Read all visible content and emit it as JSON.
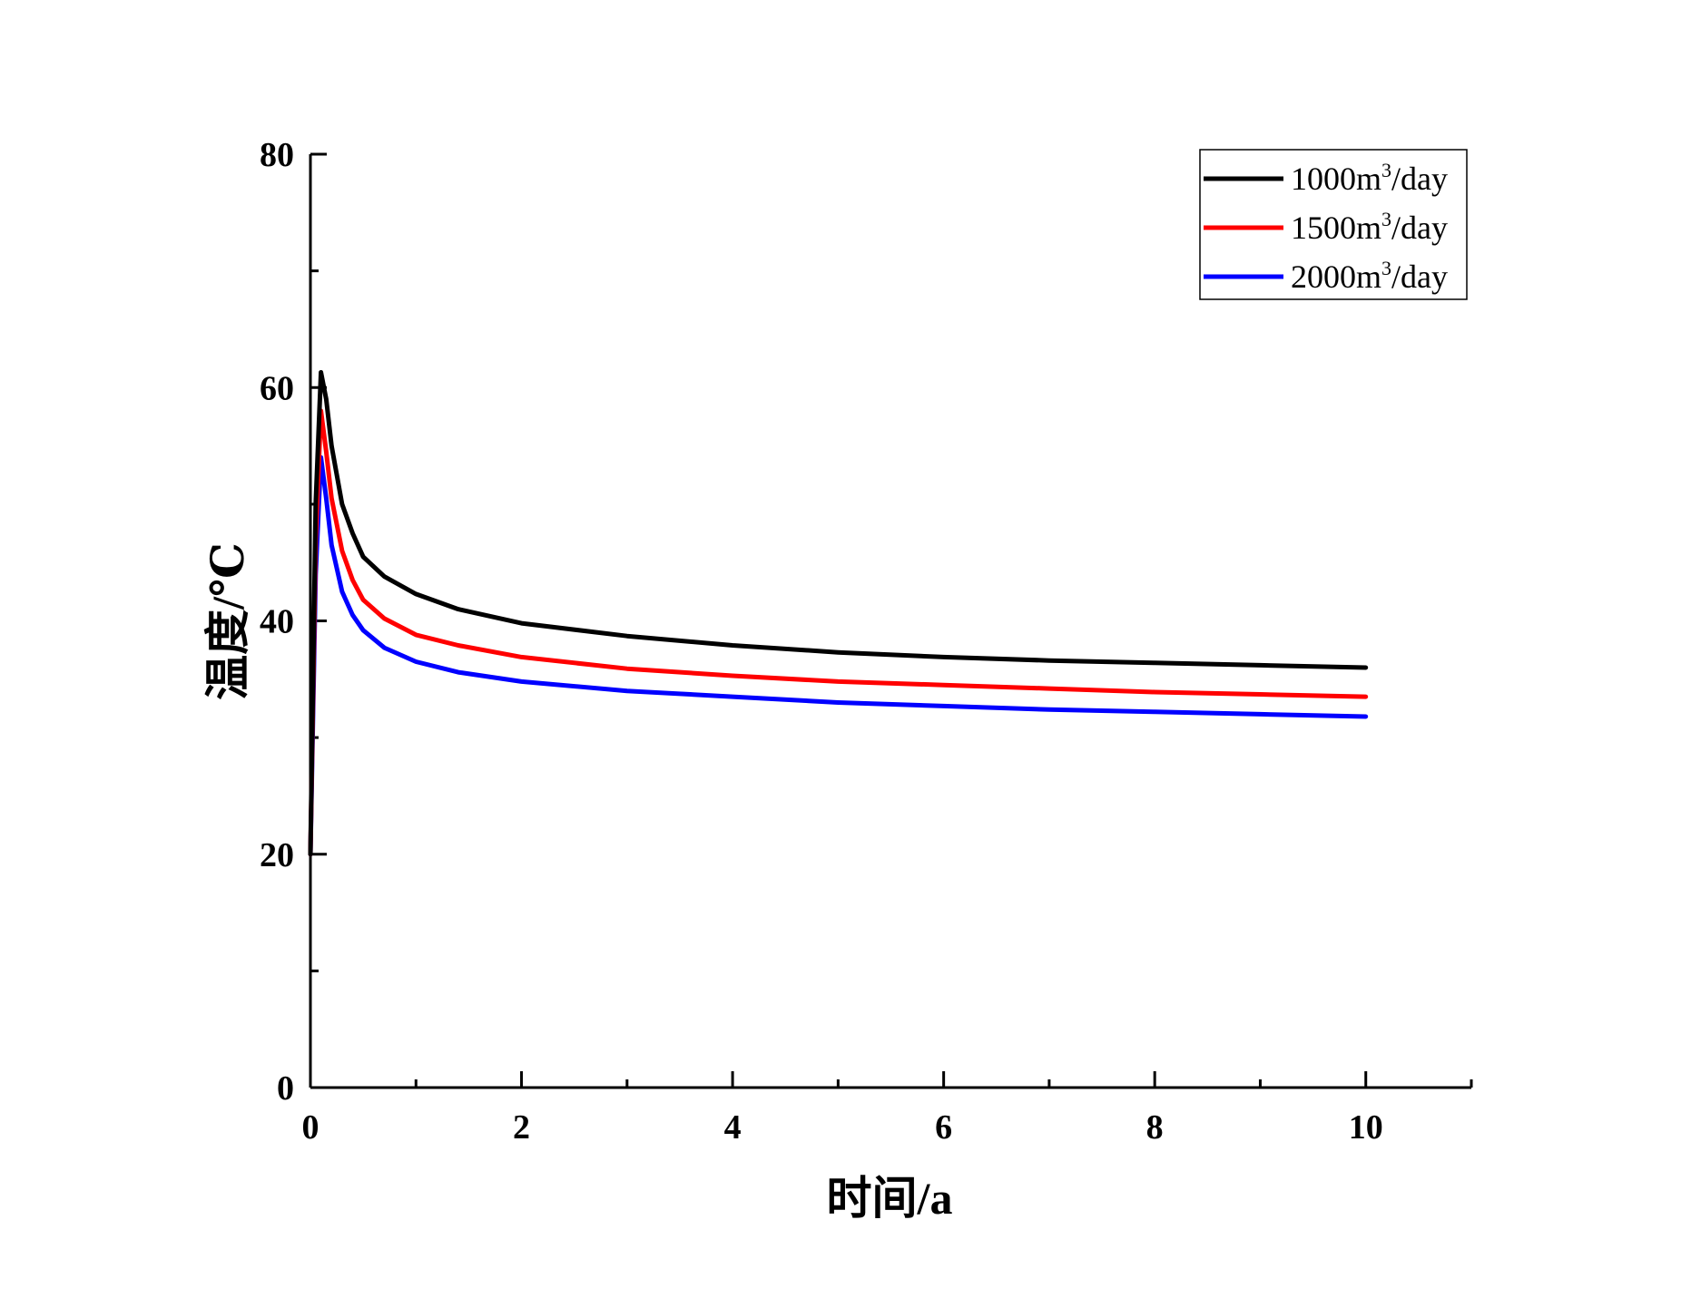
{
  "chart_data": {
    "type": "line",
    "xlabel": "时间/a",
    "ylabel": "温度/℃",
    "xlim": [
      0,
      11
    ],
    "ylim": [
      0,
      80
    ],
    "x_ticks": [
      0,
      2,
      4,
      6,
      8,
      10
    ],
    "x_minor_ticks": [
      1,
      3,
      5,
      7,
      9,
      11
    ],
    "y_ticks": [
      0,
      20,
      40,
      60,
      80
    ],
    "y_minor_ticks": [
      10,
      30,
      50,
      70
    ],
    "x_tick_labels": [
      "0",
      "2",
      "4",
      "6",
      "8",
      "10"
    ],
    "y_tick_labels": [
      "0",
      "20",
      "40",
      "60",
      "80"
    ],
    "legend_position": "top-right",
    "series": [
      {
        "name": "1000m3/day",
        "legend": {
          "base": "1000m",
          "sup": "3",
          "tail": "/day"
        },
        "color": "#000000",
        "x": [
          0,
          0.05,
          0.1,
          0.15,
          0.2,
          0.3,
          0.4,
          0.5,
          0.7,
          1.0,
          1.4,
          2.0,
          3.0,
          4.0,
          5.0,
          6.0,
          7.0,
          8.0,
          9.0,
          10.0
        ],
        "y": [
          20,
          50,
          61.3,
          59,
          55,
          50,
          47.5,
          45.5,
          43.8,
          42.3,
          41.0,
          39.8,
          38.7,
          37.9,
          37.3,
          36.9,
          36.6,
          36.4,
          36.2,
          36.0
        ]
      },
      {
        "name": "1500m3/day",
        "legend": {
          "base": "1500m",
          "sup": "3",
          "tail": "/day"
        },
        "color": "#ff0000",
        "x": [
          0,
          0.05,
          0.1,
          0.15,
          0.2,
          0.3,
          0.4,
          0.5,
          0.7,
          1.0,
          1.4,
          2.0,
          3.0,
          4.0,
          5.0,
          6.0,
          7.0,
          8.0,
          9.0,
          10.0
        ],
        "y": [
          20,
          47,
          58.0,
          54.5,
          50.5,
          46.0,
          43.5,
          41.8,
          40.2,
          38.8,
          37.9,
          36.9,
          35.9,
          35.3,
          34.8,
          34.5,
          34.2,
          33.9,
          33.7,
          33.5
        ]
      },
      {
        "name": "2000m3/day",
        "legend": {
          "base": "2000m",
          "sup": "3",
          "tail": "/day"
        },
        "color": "#0000ff",
        "x": [
          0,
          0.05,
          0.1,
          0.15,
          0.2,
          0.3,
          0.4,
          0.5,
          0.7,
          1.0,
          1.4,
          2.0,
          3.0,
          4.0,
          5.0,
          6.0,
          7.0,
          8.0,
          9.0,
          10.0
        ],
        "y": [
          20,
          44,
          54.0,
          50.5,
          46.5,
          42.5,
          40.5,
          39.2,
          37.7,
          36.5,
          35.6,
          34.8,
          34.0,
          33.5,
          33.0,
          32.7,
          32.4,
          32.2,
          32.0,
          31.8
        ]
      }
    ]
  }
}
